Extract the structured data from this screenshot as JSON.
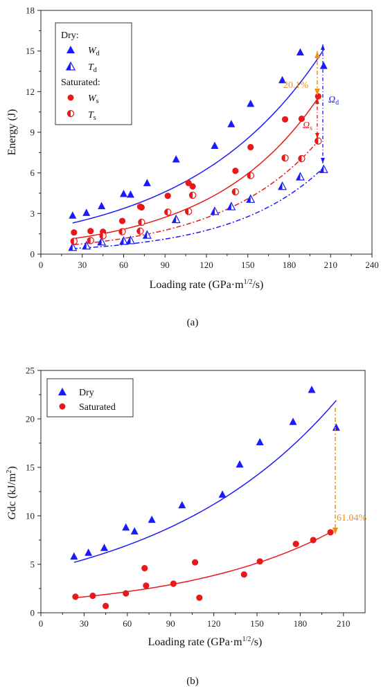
{
  "chart_data": [
    {
      "type": "scatter",
      "panel_label": "(a)",
      "xlabel": "Loading rate (GPa·m1/2/s)",
      "ylabel": "Energy (J)",
      "xlim": [
        0,
        240
      ],
      "ylim": [
        0,
        18
      ],
      "xticks": [
        0,
        30,
        60,
        90,
        120,
        150,
        180,
        210,
        240
      ],
      "yticks": [
        0,
        3,
        6,
        9,
        12,
        15,
        18
      ],
      "legend_placement": "top-left",
      "legend_headers": {
        "dry": "Dry:",
        "saturated": "Saturated:"
      },
      "series": [
        {
          "name": "Wd",
          "group": "dry",
          "marker": "triangle-filled",
          "color": "#1a1aff",
          "points": [
            [
              23,
              2.85
            ],
            [
              33,
              3.05
            ],
            [
              44,
              3.55
            ],
            [
              60,
              4.45
            ],
            [
              65,
              4.4
            ],
            [
              77,
              5.25
            ],
            [
              98,
              7.0
            ],
            [
              126,
              8.0
            ],
            [
              138,
              9.6
            ],
            [
              152,
              11.1
            ],
            [
              175,
              12.85
            ],
            [
              188,
              14.9
            ],
            [
              205,
              13.9
            ]
          ],
          "fit": {
            "style": "solid",
            "from": 23,
            "to": 205,
            "y0": 2.3,
            "y1": 15.1
          }
        },
        {
          "name": "Td",
          "group": "dry",
          "marker": "triangle-half",
          "color": "#1a1aff",
          "points": [
            [
              23,
              0.5
            ],
            [
              33,
              0.6
            ],
            [
              44,
              0.9
            ],
            [
              60,
              0.95
            ],
            [
              65,
              1.0
            ],
            [
              77,
              1.4
            ],
            [
              98,
              2.55
            ],
            [
              126,
              3.15
            ],
            [
              138,
              3.5
            ],
            [
              152,
              4.05
            ],
            [
              175,
              5.0
            ],
            [
              188,
              5.7
            ],
            [
              205,
              6.25
            ]
          ],
          "fit": {
            "style": "dashdot",
            "from": 23,
            "to": 205,
            "y0": 0.4,
            "y1": 6.4
          }
        },
        {
          "name": "Ws",
          "group": "saturated",
          "marker": "circle-filled",
          "color": "#e8191a",
          "points": [
            [
              24,
              1.6
            ],
            [
              36,
              1.7
            ],
            [
              45,
              1.65
            ],
            [
              59,
              2.45
            ],
            [
              72,
              3.5
            ],
            [
              73,
              3.45
            ],
            [
              92,
              4.3
            ],
            [
              107,
              5.25
            ],
            [
              110,
              5.0
            ],
            [
              141,
              6.15
            ],
            [
              152,
              7.9
            ],
            [
              177,
              9.95
            ],
            [
              189,
              10.0
            ],
            [
              201,
              11.65
            ]
          ],
          "fit": {
            "style": "solid",
            "from": 24,
            "to": 201,
            "y0": 1.15,
            "y1": 11.55
          }
        },
        {
          "name": "Ts",
          "group": "saturated",
          "marker": "circle-half",
          "color": "#e8191a",
          "points": [
            [
              24,
              0.95
            ],
            [
              36,
              1.0
            ],
            [
              45,
              1.35
            ],
            [
              59,
              1.65
            ],
            [
              72,
              1.7
            ],
            [
              73,
              2.35
            ],
            [
              92,
              3.1
            ],
            [
              107,
              3.15
            ],
            [
              110,
              4.35
            ],
            [
              141,
              4.6
            ],
            [
              152,
              5.8
            ],
            [
              177,
              7.1
            ],
            [
              189,
              7.05
            ],
            [
              201,
              8.35
            ]
          ],
          "fit": {
            "style": "dashdot",
            "from": 24,
            "to": 201,
            "y0": 0.7,
            "y1": 8.35
          }
        }
      ],
      "annotations": [
        {
          "text": "20.1%",
          "color": "#f0901a"
        },
        {
          "text": "Ωs",
          "color": "#e8191a"
        },
        {
          "text": "Ωd",
          "color": "#1a1aff"
        }
      ]
    },
    {
      "type": "scatter",
      "panel_label": "(b)",
      "xlabel": "Loading rate (GPa·m1/2/s)",
      "ylabel": "Gdc (kJ/m2)",
      "xlim": [
        0,
        225
      ],
      "ylim": [
        0,
        25
      ],
      "xticks": [
        0,
        30,
        60,
        90,
        120,
        150,
        180,
        210
      ],
      "yticks": [
        0,
        5,
        10,
        15,
        20,
        25
      ],
      "legend_placement": "top-left",
      "series": [
        {
          "name": "Dry",
          "marker": "triangle-filled",
          "color": "#1a1aff",
          "points": [
            [
              23,
              5.8
            ],
            [
              33,
              6.2
            ],
            [
              44,
              6.7
            ],
            [
              59,
              8.8
            ],
            [
              65,
              8.4
            ],
            [
              77,
              9.6
            ],
            [
              98,
              11.1
            ],
            [
              126,
              12.2
            ],
            [
              138,
              15.3
            ],
            [
              152,
              17.6
            ],
            [
              175,
              19.7
            ],
            [
              188,
              23.0
            ],
            [
              205,
              19.1
            ]
          ],
          "fit": {
            "style": "solid",
            "from": 23,
            "to": 205,
            "y0": 5.2,
            "y1": 21.9
          }
        },
        {
          "name": "Saturated",
          "marker": "circle-filled",
          "color": "#e8191a",
          "points": [
            [
              24,
              1.65
            ],
            [
              36,
              1.75
            ],
            [
              45,
              0.7
            ],
            [
              59,
              2.0
            ],
            [
              72,
              4.6
            ],
            [
              73,
              2.8
            ],
            [
              92,
              3.0
            ],
            [
              107,
              5.2
            ],
            [
              110,
              1.55
            ],
            [
              141,
              3.95
            ],
            [
              152,
              5.3
            ],
            [
              177,
              7.1
            ],
            [
              189,
              7.5
            ],
            [
              201,
              8.3
            ]
          ],
          "fit": {
            "style": "solid",
            "from": 24,
            "to": 201,
            "y0": 1.55,
            "y1": 8.3
          }
        }
      ],
      "annotations": [
        {
          "text": "61.04%",
          "color": "#f0901a"
        }
      ]
    }
  ]
}
